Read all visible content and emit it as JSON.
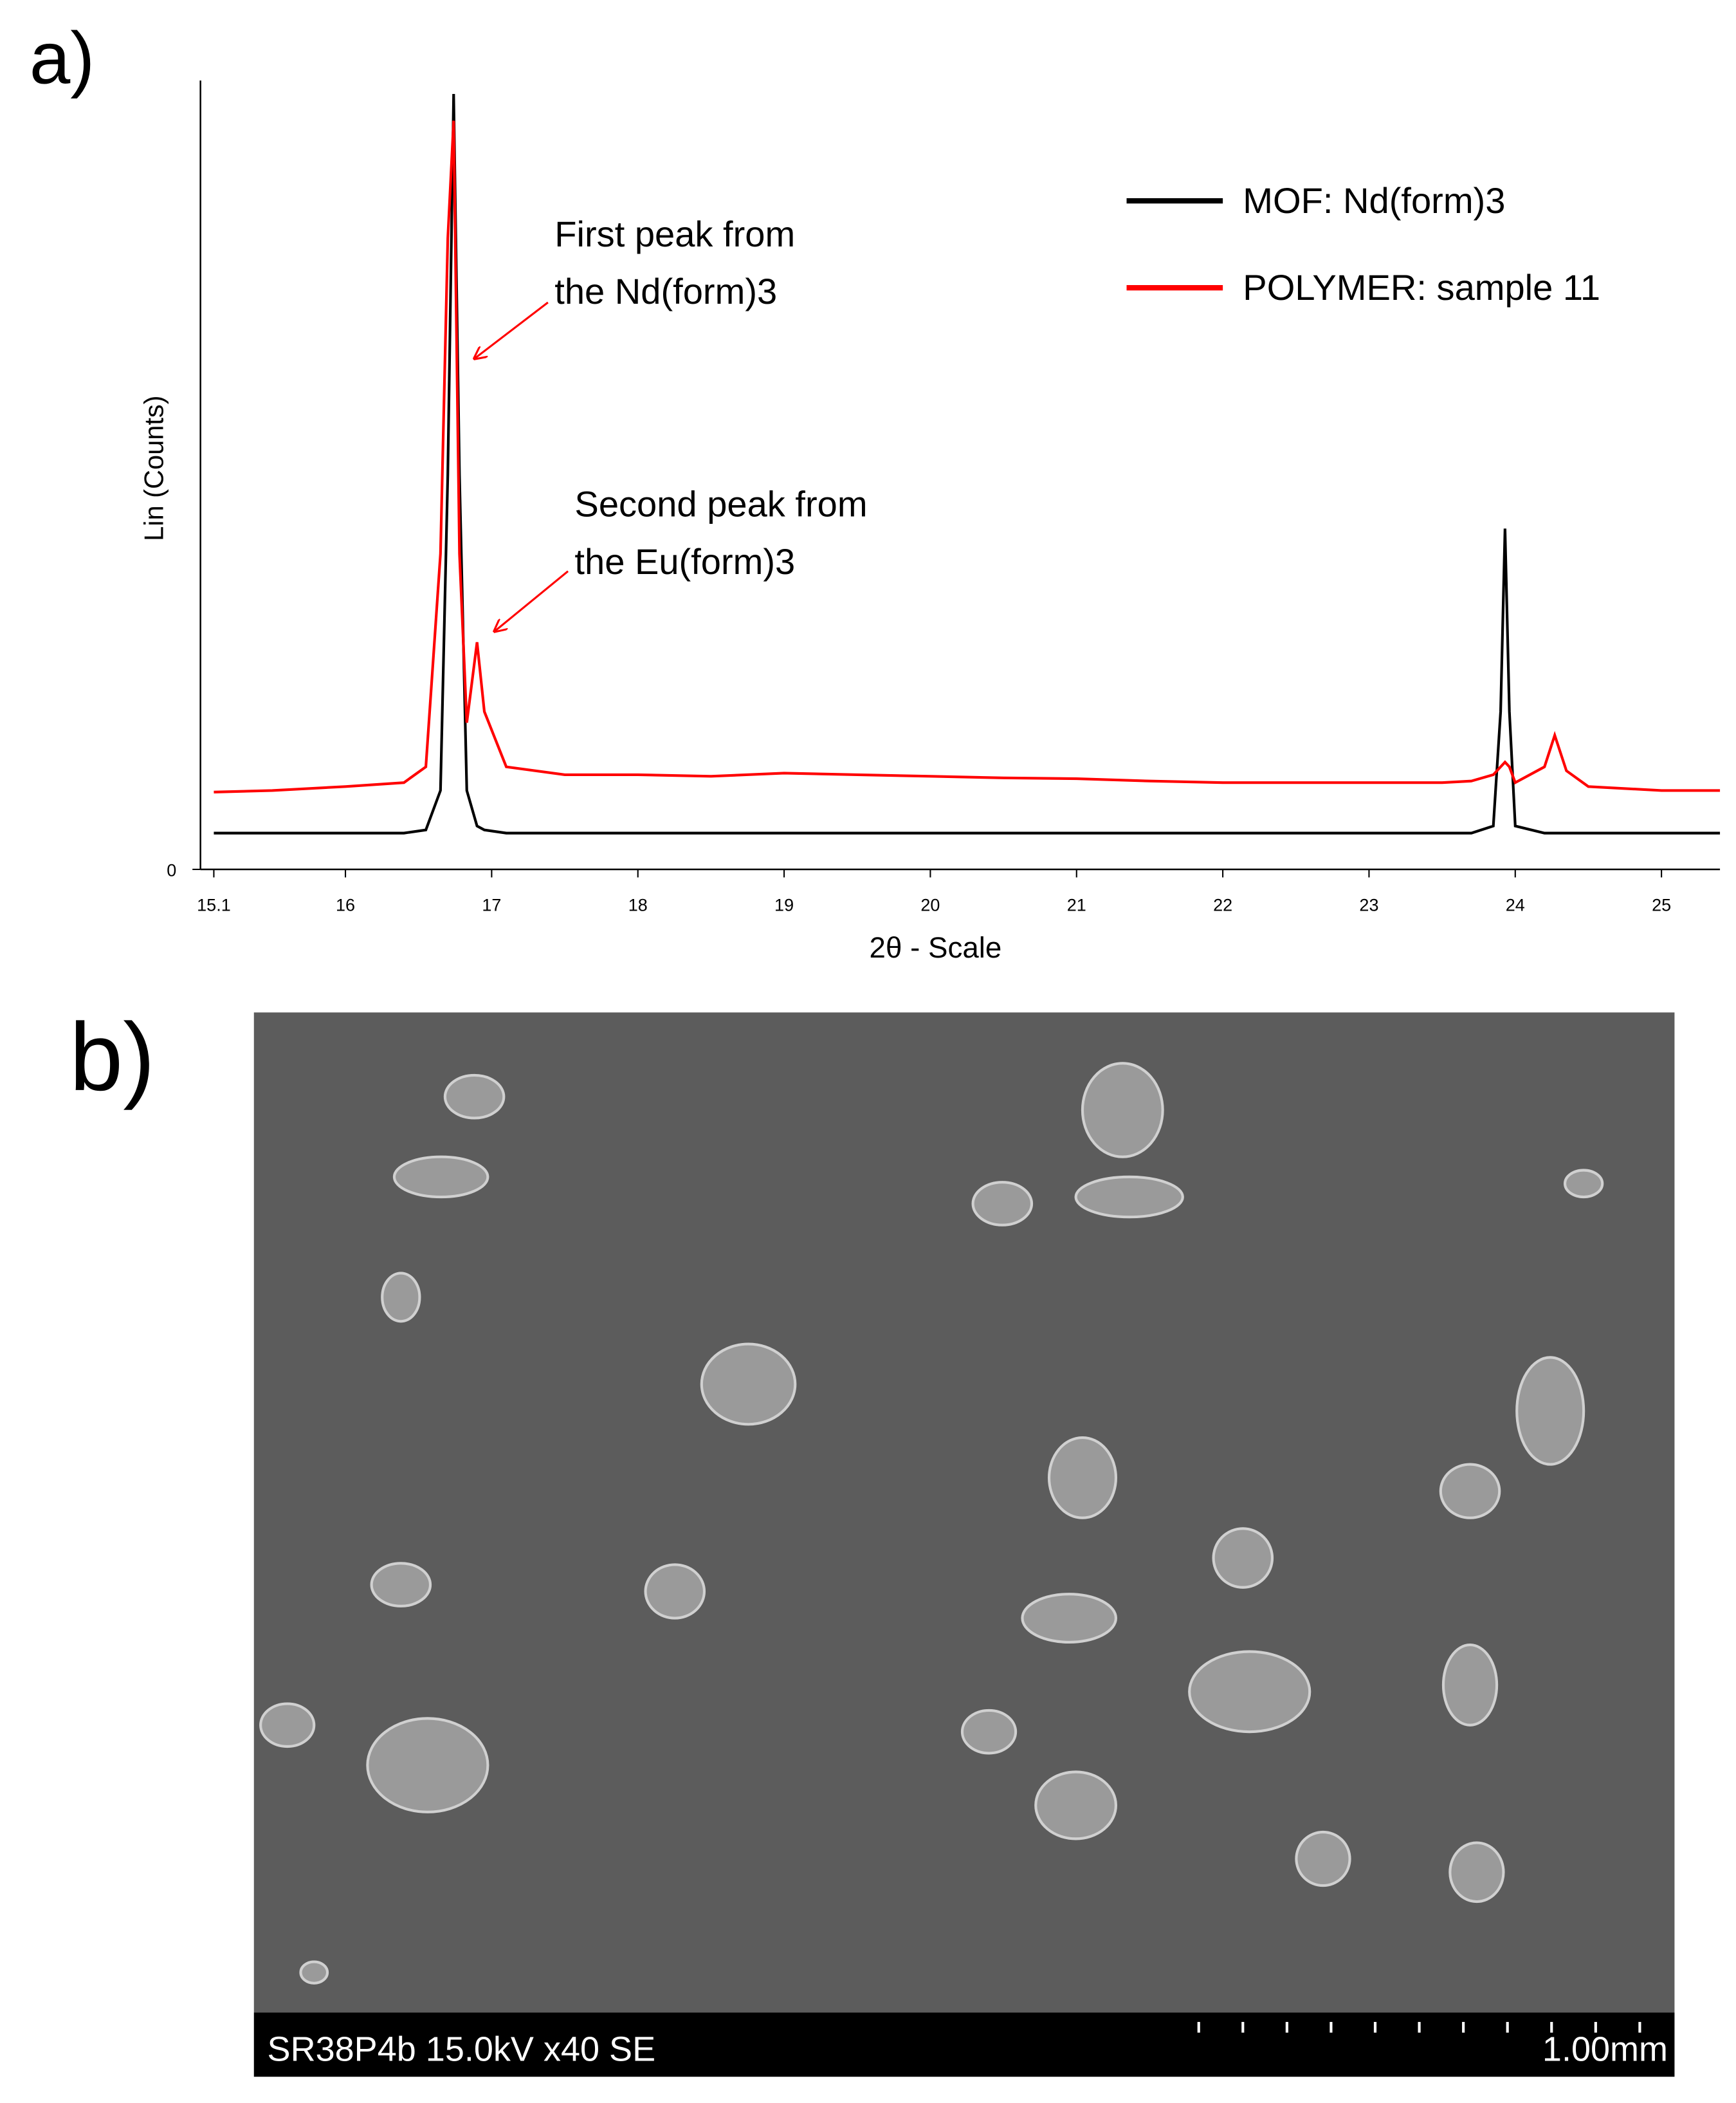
{
  "panel_a_label": "a)",
  "panel_b_label": "b)",
  "chart_data": {
    "type": "line",
    "xlabel": "2θ - Scale",
    "ylabel": "Lin (Counts)",
    "x": [
      15.1,
      15.5,
      16,
      16.4,
      16.55,
      16.65,
      16.7,
      16.74,
      16.78,
      16.83,
      16.9,
      16.95,
      17.1,
      17.5,
      18,
      18.5,
      19,
      19.5,
      20,
      20.5,
      21,
      21.5,
      22,
      22.5,
      23,
      23.5,
      23.7,
      23.85,
      23.9,
      23.93,
      23.96,
      24,
      24.2,
      24.27,
      24.35,
      24.5,
      25,
      25.4
    ],
    "series": [
      {
        "name": "MOF: Nd(form)3",
        "color": "#000000",
        "values": [
          4.6,
          4.6,
          4.6,
          4.6,
          5,
          10,
          50,
          98.3,
          50,
          10,
          5.5,
          5,
          4.6,
          4.6,
          4.6,
          4.6,
          4.6,
          4.6,
          4.6,
          4.6,
          4.6,
          4.6,
          4.6,
          4.6,
          4.6,
          4.6,
          4.6,
          5.5,
          20,
          43.2,
          20,
          5.5,
          4.6,
          4.6,
          4.6,
          4.6,
          4.6,
          4.6
        ]
      },
      {
        "name": "POLYMER: sample 11",
        "color": "#ff0000",
        "values": [
          9.8,
          10,
          10.5,
          11,
          13,
          40,
          80,
          94.9,
          40,
          18.6,
          28.8,
          20,
          13,
          12,
          12,
          11.8,
          12.2,
          12,
          11.8,
          11.6,
          11.5,
          11.2,
          11,
          11,
          11,
          11,
          11.2,
          12,
          13,
          13.6,
          13,
          11,
          13,
          17,
          12.5,
          10.5,
          10,
          10
        ]
      }
    ],
    "xlim": [
      15.1,
      25.4
    ],
    "ylim": [
      0,
      100
    ],
    "xticks": [
      15.1,
      16,
      17,
      18,
      19,
      20,
      21,
      22,
      23,
      24,
      25
    ],
    "yticks": [
      0
    ],
    "legend": "upper right",
    "annotations": [
      {
        "lines": [
          "First peak from",
          "the Nd(form)3"
        ]
      },
      {
        "lines": [
          "Second peak from",
          "the Eu(form)3"
        ]
      }
    ]
  },
  "sem_image": {
    "caption": "SR38P4b 15.0kV x40 SE",
    "scale_label": "1.00mm"
  }
}
